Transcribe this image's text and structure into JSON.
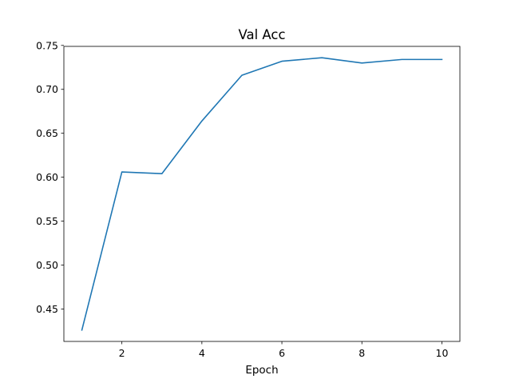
{
  "chart_data": {
    "type": "line",
    "title": "Val Acc",
    "xlabel": "Epoch",
    "ylabel": "",
    "x": [
      1,
      2,
      3,
      4,
      5,
      6,
      7,
      8,
      9,
      10
    ],
    "series": [
      {
        "values": [
          0.426,
          0.606,
          0.604,
          0.664,
          0.716,
          0.732,
          0.736,
          0.73,
          0.734,
          0.734
        ],
        "color": "#1f77b4"
      }
    ],
    "xlim": [
      0.55,
      10.45
    ],
    "ylim": [
      0.4131,
      0.7489
    ],
    "xticks": [
      2,
      4,
      6,
      8,
      10
    ],
    "xtick_labels": [
      "2",
      "4",
      "6",
      "8",
      "10"
    ],
    "yticks": [
      0.45,
      0.5,
      0.55,
      0.6,
      0.65,
      0.7,
      0.75
    ],
    "ytick_labels": [
      "0.45",
      "0.50",
      "0.55",
      "0.60",
      "0.65",
      "0.70",
      "0.75"
    ],
    "grid": false,
    "legend": "none"
  }
}
